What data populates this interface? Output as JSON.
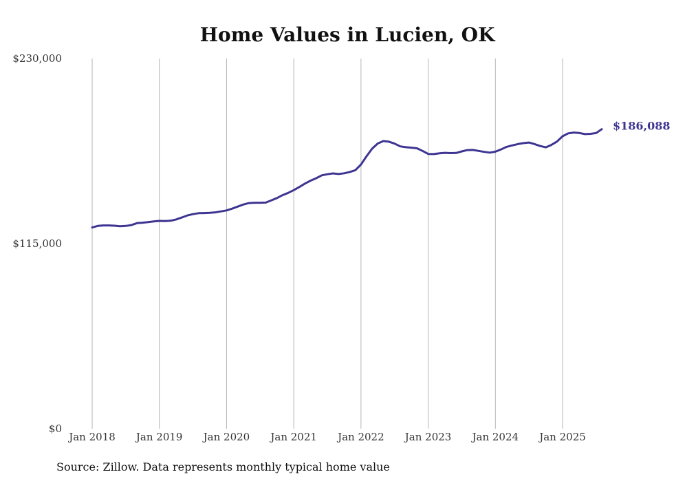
{
  "chart_data": {
    "type": "line",
    "title": "Home Values in Lucien, OK",
    "source_note": "Source: Zillow. Data represents monthly typical home value",
    "ylim": [
      0,
      230000
    ],
    "xlim": [
      2018.0,
      2025.6667
    ],
    "yticks": [
      {
        "value": 0,
        "label": "$0"
      },
      {
        "value": 115000,
        "label": "$115,000"
      },
      {
        "value": 230000,
        "label": "$230,000"
      }
    ],
    "xticks": [
      {
        "value": 2018,
        "label": "Jan 2018"
      },
      {
        "value": 2019,
        "label": "Jan 2019"
      },
      {
        "value": 2020,
        "label": "Jan 2020"
      },
      {
        "value": 2021,
        "label": "Jan 2021"
      },
      {
        "value": 2022,
        "label": "Jan 2022"
      },
      {
        "value": 2023,
        "label": "Jan 2023"
      },
      {
        "value": 2024,
        "label": "Jan 2024"
      },
      {
        "value": 2025,
        "label": "Jan 2025"
      }
    ],
    "grid": {
      "vertical": true,
      "horizontal": false
    },
    "end_label": "$186,088",
    "series": [
      {
        "name": "Typical home value",
        "color": "#3d3591",
        "points": [
          [
            2018.0,
            125000
          ],
          [
            2018.0833,
            126000
          ],
          [
            2018.1667,
            126300
          ],
          [
            2018.25,
            126300
          ],
          [
            2018.3333,
            126100
          ],
          [
            2018.4167,
            125800
          ],
          [
            2018.5,
            126000
          ],
          [
            2018.5833,
            126500
          ],
          [
            2018.6667,
            127700
          ],
          [
            2018.75,
            128000
          ],
          [
            2018.8333,
            128400
          ],
          [
            2018.9167,
            128800
          ],
          [
            2019.0,
            129100
          ],
          [
            2019.0833,
            129000
          ],
          [
            2019.1667,
            129200
          ],
          [
            2019.25,
            130000
          ],
          [
            2019.3333,
            131200
          ],
          [
            2019.4167,
            132500
          ],
          [
            2019.5,
            133300
          ],
          [
            2019.5833,
            133900
          ],
          [
            2019.6667,
            134000
          ],
          [
            2019.75,
            134100
          ],
          [
            2019.8333,
            134400
          ],
          [
            2019.9167,
            135000
          ],
          [
            2020.0,
            135600
          ],
          [
            2020.0833,
            136700
          ],
          [
            2020.1667,
            138000
          ],
          [
            2020.25,
            139300
          ],
          [
            2020.3333,
            140200
          ],
          [
            2020.4167,
            140400
          ],
          [
            2020.5,
            140400
          ],
          [
            2020.5833,
            140500
          ],
          [
            2020.6667,
            141900
          ],
          [
            2020.75,
            143300
          ],
          [
            2020.8333,
            145100
          ],
          [
            2020.9167,
            146500
          ],
          [
            2021.0,
            148200
          ],
          [
            2021.0833,
            150200
          ],
          [
            2021.1667,
            152300
          ],
          [
            2021.25,
            154100
          ],
          [
            2021.3333,
            155600
          ],
          [
            2021.4167,
            157400
          ],
          [
            2021.5,
            158100
          ],
          [
            2021.5833,
            158600
          ],
          [
            2021.6667,
            158200
          ],
          [
            2021.75,
            158700
          ],
          [
            2021.8333,
            159500
          ],
          [
            2021.9167,
            160600
          ],
          [
            2022.0,
            164100
          ],
          [
            2022.0833,
            169300
          ],
          [
            2022.1667,
            174000
          ],
          [
            2022.25,
            177200
          ],
          [
            2022.3333,
            178700
          ],
          [
            2022.4167,
            178300
          ],
          [
            2022.5,
            177100
          ],
          [
            2022.5833,
            175400
          ],
          [
            2022.6667,
            174900
          ],
          [
            2022.75,
            174600
          ],
          [
            2022.8333,
            174200
          ],
          [
            2022.9167,
            172600
          ],
          [
            2023.0,
            170700
          ],
          [
            2023.0833,
            170600
          ],
          [
            2023.1667,
            171100
          ],
          [
            2023.25,
            171400
          ],
          [
            2023.3333,
            171200
          ],
          [
            2023.4167,
            171300
          ],
          [
            2023.5,
            172300
          ],
          [
            2023.5833,
            173100
          ],
          [
            2023.6667,
            173200
          ],
          [
            2023.75,
            172600
          ],
          [
            2023.8333,
            172000
          ],
          [
            2023.9167,
            171500
          ],
          [
            2024.0,
            172100
          ],
          [
            2024.0833,
            173500
          ],
          [
            2024.1667,
            175100
          ],
          [
            2024.25,
            176000
          ],
          [
            2024.3333,
            176800
          ],
          [
            2024.4167,
            177400
          ],
          [
            2024.5,
            177800
          ],
          [
            2024.5833,
            176800
          ],
          [
            2024.6667,
            175600
          ],
          [
            2024.75,
            174800
          ],
          [
            2024.8333,
            176300
          ],
          [
            2024.9167,
            178400
          ],
          [
            2025.0,
            181700
          ],
          [
            2025.0833,
            183500
          ],
          [
            2025.1667,
            184000
          ],
          [
            2025.25,
            183700
          ],
          [
            2025.3333,
            183000
          ],
          [
            2025.4167,
            183200
          ],
          [
            2025.5,
            183700
          ],
          [
            2025.5833,
            186088
          ]
        ]
      }
    ]
  }
}
